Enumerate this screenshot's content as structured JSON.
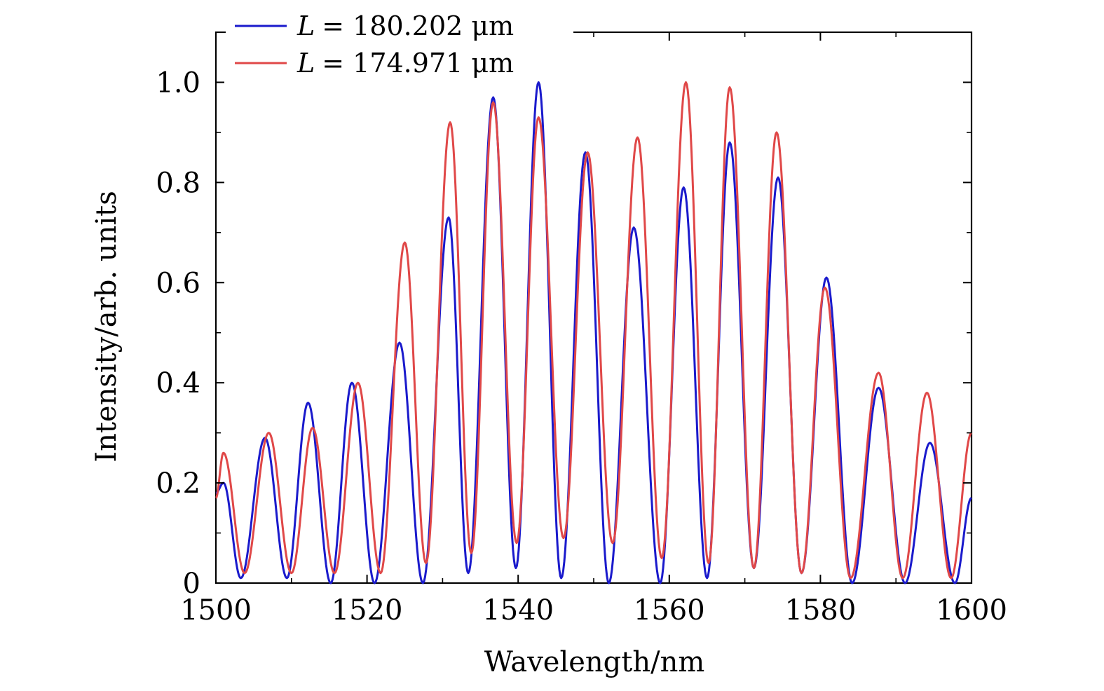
{
  "chart_data": {
    "type": "line",
    "title": "",
    "xlabel": "Wavelength/nm",
    "ylabel": "Intensity/arb. units",
    "xlim": [
      1500,
      1600
    ],
    "ylim": [
      0,
      1.1
    ],
    "x_ticks": [
      1500,
      1520,
      1540,
      1560,
      1580,
      1600
    ],
    "x_tick_labels": [
      "1500",
      "1520",
      "1540",
      "1560",
      "1580",
      "1600"
    ],
    "y_ticks": [
      0,
      0.2,
      0.4,
      0.6,
      0.8,
      1.0
    ],
    "y_tick_labels": [
      "0",
      "0.2",
      "0.4",
      "0.6",
      "0.8",
      "1.0"
    ],
    "grid": false,
    "legend_position": "top-left",
    "series": [
      {
        "name_symbol": "L",
        "name_value": "= 180.202 μm",
        "color": "#1a1acc",
        "x": [
          1500.0,
          1501.0,
          1503.3,
          1506.5,
          1509.4,
          1512.2,
          1515.2,
          1518.0,
          1521.0,
          1524.3,
          1527.4,
          1530.8,
          1533.4,
          1536.7,
          1539.7,
          1542.7,
          1545.7,
          1548.9,
          1552.0,
          1555.3,
          1558.8,
          1561.9,
          1565.0,
          1568.0,
          1571.2,
          1574.4,
          1577.5,
          1580.8,
          1584.2,
          1587.7,
          1591.2,
          1594.5,
          1597.8,
          1600.0
        ],
        "y": [
          0.18,
          0.2,
          0.01,
          0.29,
          0.01,
          0.36,
          0.0,
          0.4,
          0.0,
          0.48,
          0.0,
          0.73,
          0.02,
          0.97,
          0.03,
          1.0,
          0.01,
          0.86,
          0.0,
          0.71,
          0.0,
          0.79,
          0.01,
          0.88,
          0.03,
          0.81,
          0.02,
          0.61,
          0.0,
          0.39,
          0.0,
          0.28,
          0.0,
          0.17
        ]
      },
      {
        "name_symbol": "L",
        "name_value": "= 174.971 μm",
        "color": "#e04848",
        "x": [
          1500.0,
          1501.0,
          1503.8,
          1507.0,
          1510.0,
          1512.8,
          1515.7,
          1518.8,
          1521.8,
          1525.0,
          1527.8,
          1531.0,
          1533.8,
          1536.7,
          1539.8,
          1542.7,
          1546.0,
          1549.2,
          1552.5,
          1555.8,
          1559.0,
          1562.2,
          1565.2,
          1568.0,
          1571.2,
          1574.2,
          1577.5,
          1580.6,
          1584.0,
          1587.7,
          1590.9,
          1594.1,
          1597.3,
          1600.0
        ],
        "y": [
          0.17,
          0.26,
          0.02,
          0.3,
          0.02,
          0.31,
          0.02,
          0.4,
          0.02,
          0.68,
          0.04,
          0.92,
          0.06,
          0.96,
          0.08,
          0.93,
          0.09,
          0.86,
          0.08,
          0.89,
          0.05,
          1.0,
          0.04,
          0.99,
          0.03,
          0.9,
          0.02,
          0.59,
          0.01,
          0.42,
          0.01,
          0.38,
          0.01,
          0.3
        ]
      }
    ]
  }
}
